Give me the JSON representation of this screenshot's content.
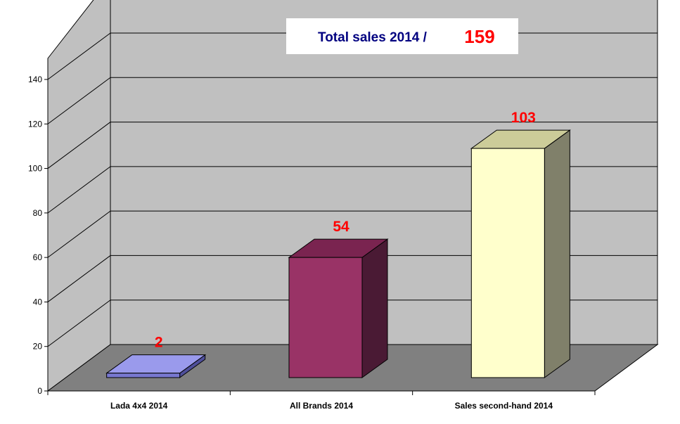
{
  "chart_data": {
    "type": "bar",
    "style": "3d",
    "title": "Total sales 2014 /",
    "total_value": "159",
    "categories": [
      "Lada 4x4 2014",
      "All Brands 2014",
      "Sales second-hand 2014"
    ],
    "values": [
      2,
      54,
      103
    ],
    "data_labels": [
      "2",
      "54",
      "103"
    ],
    "y_ticks": [
      "0",
      "20",
      "40",
      "60",
      "80",
      "100",
      "120",
      "140"
    ],
    "ylim": [
      0,
      140
    ],
    "grid": true,
    "xlabel": "",
    "ylabel": ""
  },
  "colors": {
    "bars": [
      {
        "front": "#7878d0",
        "top": "#9a9aec",
        "side": "#4f4f9a"
      },
      {
        "front": "#993366",
        "top": "#7a2450",
        "side": "#4a1a34"
      },
      {
        "front": "#ffffcc",
        "top": "#cccc99",
        "side": "#80806a"
      }
    ],
    "back_wall": "#c0c0c0",
    "side_wall": "#c0c0c0",
    "floor": "#808080",
    "grid": "#000000",
    "data_label": "#ff0000",
    "title_text": "#000080",
    "total_text": "#ff0000",
    "title_box": "#ffffff"
  }
}
